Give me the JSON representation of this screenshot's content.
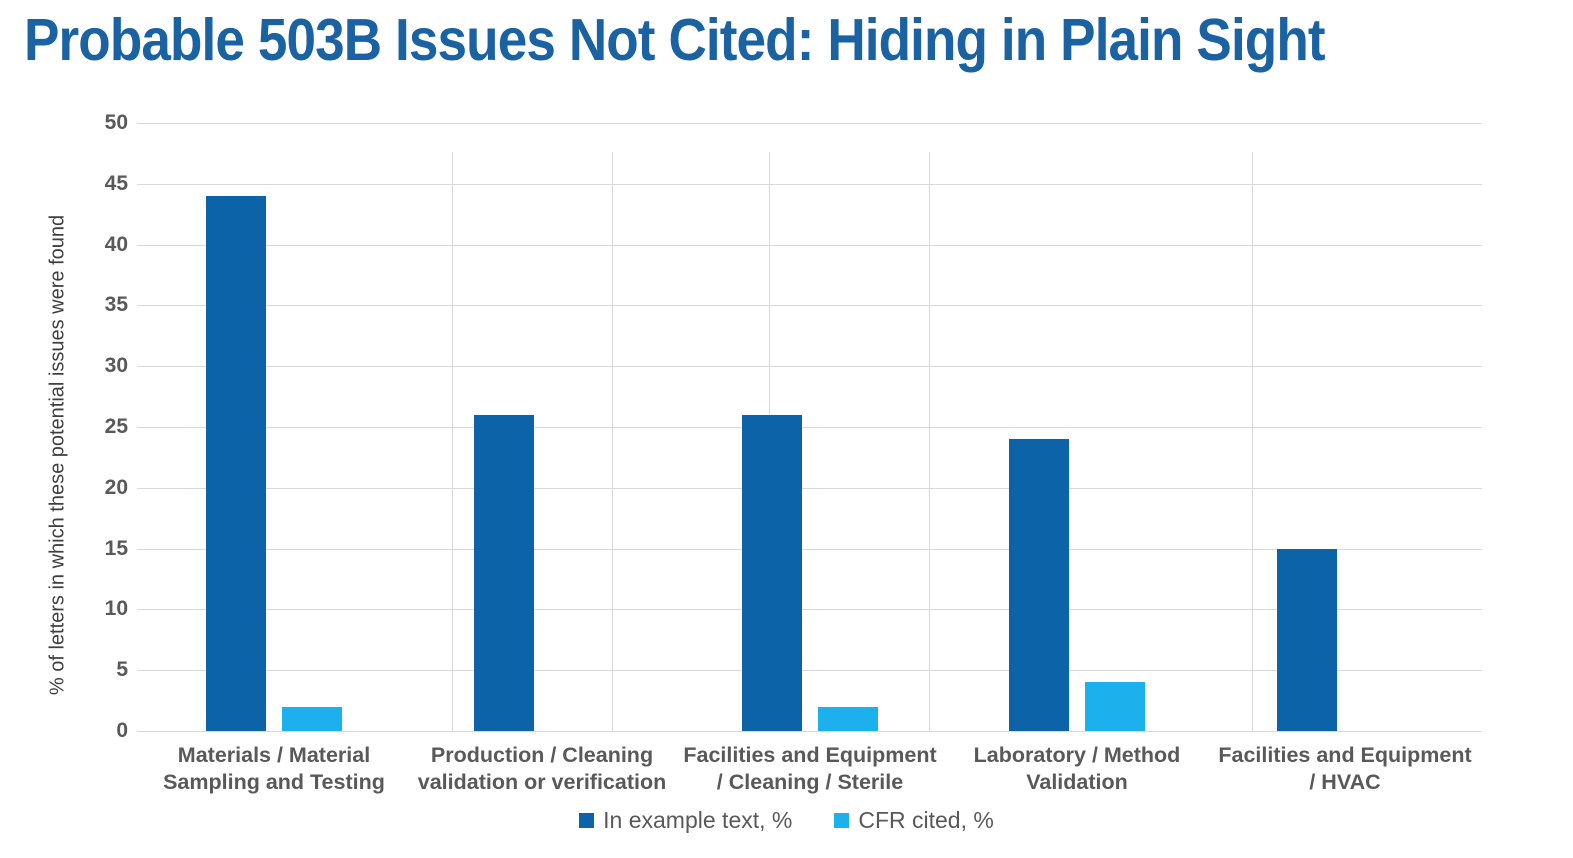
{
  "page": {
    "background": "#FFFFFF"
  },
  "header": {
    "title": "Probable 503B Issues Not Cited: Hiding in Plain Sight",
    "title_color": "#1A62A2"
  },
  "chart_data": {
    "type": "bar",
    "title": "Probable 503B Issues Not Cited: Hiding in Plain Sight",
    "xlabel": "",
    "ylabel": "% of letters in which these potential issues were found",
    "ylim": [
      0,
      50
    ],
    "ytick_step": 5,
    "yticks": [
      50,
      45,
      40,
      35,
      30,
      25,
      20,
      15,
      10,
      5,
      0
    ],
    "grid": true,
    "legend_position": "bottom",
    "categories": [
      "Materials / Material Sampling and Testing",
      "Production / Cleaning validation or verification",
      "Facilities and Equipment / Cleaning / Sterile",
      "Laboratory / Method Validation",
      "Facilities and Equipment / HVAC"
    ],
    "categories_lines": [
      [
        "Materials / Material",
        "Sampling and Testing"
      ],
      [
        "Production / Cleaning",
        "validation or verification"
      ],
      [
        "Facilities and Equipment",
        "/ Cleaning / Sterile"
      ],
      [
        "Laboratory / Method",
        "Validation"
      ],
      [
        "Facilities and Equipment",
        "/ HVAC"
      ]
    ],
    "series": [
      {
        "name": "In example text, %",
        "color": "#0C63A8",
        "values": [
          44,
          26,
          26,
          24,
          15
        ]
      },
      {
        "name": "CFR cited, %",
        "color": "#1CB1EC",
        "values": [
          2,
          0,
          2,
          4,
          0
        ]
      }
    ],
    "colors": {
      "gridline": "#D9D9D9",
      "tick_label": "#595959",
      "category_label": "#595959",
      "axis_title": "#3F3F3F",
      "legend_text": "#595959"
    }
  }
}
